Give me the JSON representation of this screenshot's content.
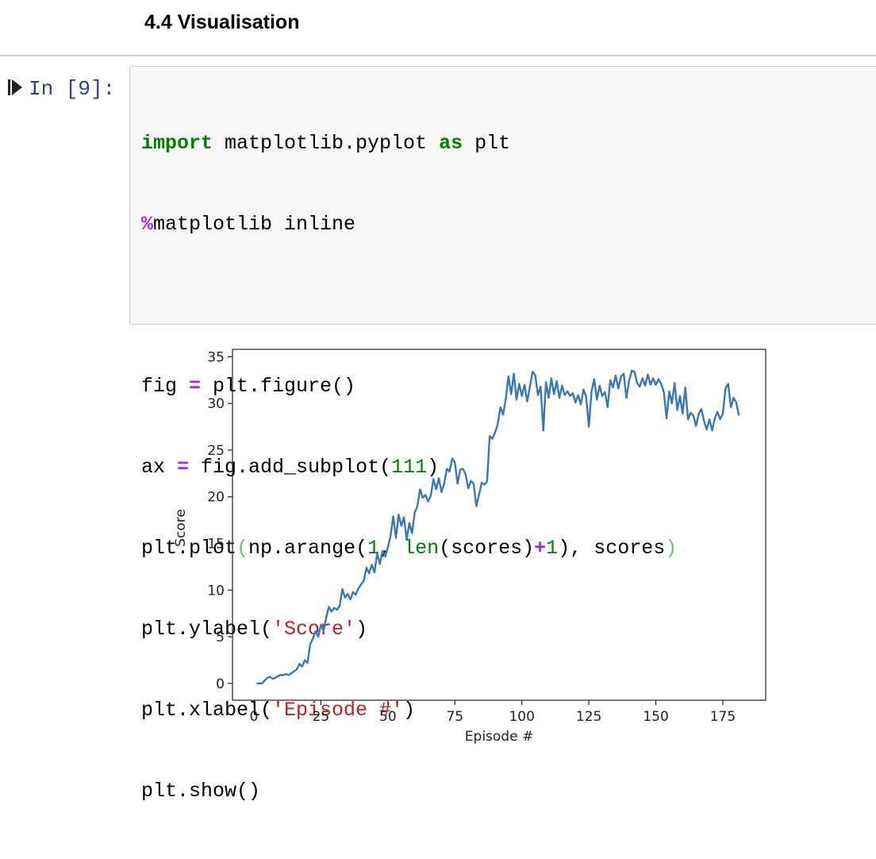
{
  "heading": "4.4 Visualisation",
  "prompt": "In [9]:",
  "code": {
    "lines": [
      [
        "import",
        " matplotlib.pyplot ",
        "as",
        " plt"
      ],
      [
        "%",
        "matplotlib inline"
      ],
      [
        "fig ",
        "=",
        " plt.figure()"
      ],
      [
        "ax ",
        "=",
        " fig.add_subplot(",
        "111",
        ")"
      ],
      [
        "plt.plot",
        "(",
        "np.arange(",
        "1",
        ", ",
        "len",
        "(scores)",
        "+",
        "1",
        "), scores",
        ")"
      ],
      [
        "plt.ylabel(",
        "'Score'",
        ")"
      ],
      [
        "plt.xlabel(",
        "'Episode #'",
        ")"
      ],
      [
        "plt.show()"
      ]
    ]
  },
  "chart_data": {
    "type": "line",
    "xlabel": "Episode #",
    "ylabel": "Score",
    "color": "#3a78b5",
    "xlim": [
      -8,
      191
    ],
    "ylim": [
      -1.8,
      35.8
    ],
    "xticks": [
      0,
      25,
      50,
      75,
      100,
      125,
      150,
      175
    ],
    "yticks": [
      0,
      5,
      10,
      15,
      20,
      25,
      30,
      35
    ],
    "x": [
      1,
      2,
      3,
      4,
      5,
      6,
      7,
      8,
      9,
      10,
      11,
      12,
      13,
      14,
      15,
      16,
      17,
      18,
      19,
      20,
      21,
      22,
      23,
      24,
      25,
      26,
      27,
      28,
      29,
      30,
      31,
      32,
      33,
      34,
      35,
      36,
      37,
      38,
      39,
      40,
      41,
      42,
      43,
      44,
      45,
      46,
      47,
      48,
      49,
      50,
      51,
      52,
      53,
      54,
      55,
      56,
      57,
      58,
      59,
      60,
      61,
      62,
      63,
      64,
      65,
      66,
      67,
      68,
      69,
      70,
      71,
      72,
      73,
      74,
      75,
      76,
      77,
      78,
      79,
      80,
      81,
      82,
      83,
      84,
      85,
      86,
      87,
      88,
      89,
      90,
      91,
      92,
      93,
      94,
      95,
      96,
      97,
      98,
      99,
      100,
      101,
      102,
      103,
      104,
      105,
      106,
      107,
      108,
      109,
      110,
      111,
      112,
      113,
      114,
      115,
      116,
      117,
      118,
      119,
      120,
      121,
      122,
      123,
      124,
      125,
      126,
      127,
      128,
      129,
      130,
      131,
      132,
      133,
      134,
      135,
      136,
      137,
      138,
      139,
      140,
      141,
      142,
      143,
      144,
      145,
      146,
      147,
      148,
      149,
      150,
      151,
      152,
      153,
      154,
      155,
      156,
      157,
      158,
      159,
      160,
      161,
      162,
      163,
      164,
      165,
      166,
      167,
      168,
      169,
      170,
      171,
      172,
      173,
      174,
      175,
      176,
      177,
      178,
      179,
      180,
      181
    ],
    "values": [
      0,
      0,
      0,
      0.3,
      0.6,
      0.7,
      0.5,
      0.6,
      0.8,
      0.9,
      0.9,
      1.0,
      0.9,
      1.1,
      1.3,
      1.5,
      2.1,
      1.8,
      2.5,
      2.2,
      4.2,
      4.8,
      5.6,
      5.0,
      6.3,
      5.6,
      7.1,
      8.2,
      7.7,
      8.1,
      7.9,
      8.3,
      10.1,
      9.2,
      9.6,
      9.0,
      9.8,
      9.5,
      10.2,
      10.6,
      11.0,
      12.4,
      11.8,
      12.7,
      11.9,
      13.9,
      12.8,
      14.2,
      13.6,
      14.6,
      15.8,
      17.9,
      15.6,
      18.1,
      16.9,
      17.8,
      15.4,
      17.2,
      16.1,
      18.3,
      19.0,
      20.8,
      19.9,
      20.2,
      19.5,
      20.1,
      21.9,
      20.8,
      22.0,
      20.5,
      21.4,
      23.0,
      22.7,
      24.1,
      23.7,
      21.4,
      22.9,
      23.0,
      22.4,
      20.9,
      21.7,
      21.4,
      19.0,
      20.2,
      21.5,
      21.3,
      21.6,
      26.5,
      26.2,
      26.9,
      27.8,
      29.6,
      28.8,
      30.5,
      32.9,
      31.0,
      33.2,
      30.4,
      32.1,
      30.8,
      32.0,
      30.2,
      31.8,
      33.4,
      33.0,
      30.9,
      31.8,
      27.1,
      32.3,
      30.6,
      32.7,
      31.0,
      32.4,
      30.6,
      31.9,
      30.9,
      31.3,
      30.8,
      31.1,
      30.1,
      30.9,
      29.9,
      31.5,
      30.7,
      27.5,
      31.3,
      32.6,
      30.4,
      31.9,
      30.8,
      31.2,
      29.6,
      32.5,
      31.7,
      33.0,
      31.6,
      32.9,
      33.2,
      30.6,
      32.4,
      33.5,
      33.4,
      32.2,
      31.8,
      32.7,
      31.9,
      33.1,
      32.0,
      32.7,
      32.0,
      32.6,
      32.1,
      31.2,
      28.4,
      31.3,
      30.0,
      32.2,
      29.3,
      30.8,
      28.9,
      31.7,
      28.3,
      29.0,
      28.7,
      27.6,
      28.9,
      29.4,
      28.1,
      27.2,
      28.3,
      27.1,
      28.4,
      29.1,
      28.3,
      28.9,
      31.6,
      32.1,
      29.6,
      30.6,
      30.1,
      28.7
    ]
  }
}
